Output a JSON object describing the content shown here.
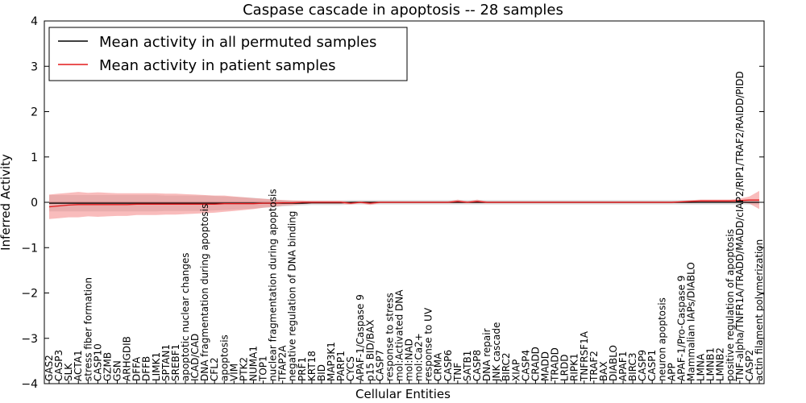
{
  "chart_data": {
    "type": "line",
    "title": "Caspase cascade in apoptosis -- 28 samples",
    "xlabel": "Cellular Entities",
    "ylabel": "Inferred Activity",
    "ylim": [
      -4,
      4
    ],
    "yticks": [
      -4,
      -3,
      -2,
      -1,
      0,
      1,
      2,
      3,
      4
    ],
    "legend_position": "top-left",
    "colors": {
      "permuted_line": "#000000",
      "permuted_band": "#c8c8c8",
      "patient_line": "#e41a1c",
      "patient_band": "#f47a7a"
    },
    "categories": [
      "GAS2",
      "CASP3",
      "SLK",
      "ACTA1",
      "stress fiber formation",
      "CASP10",
      "GZMB",
      "GSN",
      "ARHGDIB",
      "DFFA",
      "DFFB",
      "LIMK1",
      "SPTAN1",
      "SREBF1",
      "apoptotic nuclear changes",
      "ICAD/CAD",
      "DNA fragmentation during apoptosis",
      "CFL2",
      "apoptosis",
      "VIM",
      "PTK2",
      "NUMA1",
      "TOP1",
      "nuclear fragmentation during apoptosis",
      "TFAP2A",
      "negative regulation of DNA binding",
      "PRF1",
      "KRT18",
      "BID",
      "MAP3K1",
      "PARP1",
      "CYCS",
      "APAF-1/Caspase 9",
      "p15 BID/BAX",
      "CASP7",
      "response to stress",
      "mol:Activated DNA",
      "mol:NAD",
      "mol:Ca2+",
      "response to UV",
      "CRMA",
      "CASP6",
      "TNF",
      "SATB1",
      "CASP8",
      "DNA repair",
      "JNK cascade",
      "BIRC2",
      "XIAP",
      "CASP4",
      "CRADD",
      "MADD",
      "TRADD",
      "LRDD",
      "RIPK1",
      "TNFRSF1A",
      "TRAF2",
      "BAX",
      "DIABLO",
      "APAF1",
      "BIRC3",
      "CASP9",
      "CASP1",
      "neuron apoptosis",
      "APP",
      "APAF-1/Pro-Caspase 9",
      "Mammalian IAPs/DIABLO",
      "LMNA",
      "LMNB1",
      "LMNB2",
      "positive regulation of apoptosis",
      "TNF-alpha/TNFR1A/TRADD/MADD/cIAP2/RIP1/TRAF2/RAIDD/PIDD",
      "CASP2",
      "actin filament polymerization"
    ],
    "series": [
      {
        "name": "Mean activity in all permuted samples",
        "values": [
          -0.02,
          -0.02,
          -0.02,
          -0.02,
          -0.02,
          -0.02,
          -0.02,
          -0.02,
          -0.02,
          -0.02,
          -0.02,
          -0.02,
          -0.02,
          -0.02,
          -0.02,
          -0.02,
          -0.02,
          -0.02,
          -0.02,
          -0.02,
          -0.02,
          -0.02,
          -0.02,
          -0.02,
          -0.02,
          -0.02,
          -0.02,
          -0.01,
          -0.01,
          -0.01,
          -0.01,
          0,
          0,
          0,
          0,
          0,
          0,
          0,
          0,
          0,
          0,
          0,
          0,
          0,
          0,
          0,
          0,
          0,
          0,
          0,
          0,
          0,
          0,
          0,
          0,
          0,
          0,
          0,
          0,
          0,
          0,
          0,
          0,
          0,
          0,
          0,
          0,
          0,
          0,
          0,
          0,
          0,
          0,
          0
        ],
        "band": [
          0.18,
          0.18,
          0.18,
          0.18,
          0.18,
          0.18,
          0.18,
          0.18,
          0.18,
          0.18,
          0.18,
          0.18,
          0.17,
          0.17,
          0.17,
          0.17,
          0.17,
          0.16,
          0.15,
          0.14,
          0.13,
          0.12,
          0.1,
          0.09,
          0.07,
          0.06,
          0.05,
          0.05,
          0.05,
          0.05,
          0.05,
          0.05,
          0.05,
          0.05,
          0.05,
          0.05,
          0.05,
          0.05,
          0.05,
          0.05,
          0.05,
          0.05,
          0.05,
          0.05,
          0.05,
          0.05,
          0.05,
          0.05,
          0.05,
          0.05,
          0.05,
          0.05,
          0.05,
          0.05,
          0.05,
          0.05,
          0.05,
          0.05,
          0.05,
          0.05,
          0.05,
          0.05,
          0.05,
          0.05,
          0.05,
          0.05,
          0.05,
          0.05,
          0.05,
          0.05,
          0.05,
          0.05,
          0.05,
          0.05
        ]
      },
      {
        "name": "Mean activity in patient samples",
        "values": [
          -0.1,
          -0.08,
          -0.06,
          -0.05,
          -0.05,
          -0.05,
          -0.05,
          -0.05,
          -0.05,
          -0.04,
          -0.04,
          -0.04,
          -0.04,
          -0.04,
          -0.04,
          -0.04,
          -0.04,
          -0.04,
          -0.03,
          -0.03,
          -0.03,
          -0.03,
          -0.02,
          -0.02,
          -0.01,
          -0.01,
          0,
          0,
          0,
          0,
          0,
          -0.02,
          0,
          -0.02,
          0,
          0,
          0,
          0,
          0,
          0,
          0,
          0,
          0.02,
          0,
          0.02,
          0,
          0,
          0,
          0,
          0,
          0,
          0,
          0,
          0,
          0,
          0,
          0,
          0,
          0,
          0,
          0,
          0,
          0,
          0,
          0,
          0.01,
          0.02,
          0.03,
          0.03,
          0.03,
          0.03,
          0.04,
          0.05,
          0.05
        ],
        "band": [
          0.27,
          0.27,
          0.27,
          0.28,
          0.26,
          0.27,
          0.26,
          0.25,
          0.25,
          0.24,
          0.24,
          0.24,
          0.23,
          0.23,
          0.22,
          0.21,
          0.2,
          0.19,
          0.18,
          0.16,
          0.14,
          0.12,
          0.1,
          0.08,
          0.06,
          0.05,
          0.04,
          0.03,
          0.03,
          0.03,
          0.03,
          0.03,
          0.02,
          0.04,
          0.02,
          0.02,
          0.02,
          0.02,
          0.02,
          0.02,
          0.02,
          0.02,
          0.04,
          0.02,
          0.04,
          0.02,
          0.02,
          0.02,
          0.02,
          0.02,
          0.02,
          0.02,
          0.02,
          0.02,
          0.02,
          0.02,
          0.02,
          0.02,
          0.02,
          0.02,
          0.02,
          0.02,
          0.02,
          0.02,
          0.02,
          0.02,
          0.03,
          0.03,
          0.03,
          0.03,
          0.03,
          0.04,
          0.08,
          0.2
        ]
      }
    ]
  }
}
